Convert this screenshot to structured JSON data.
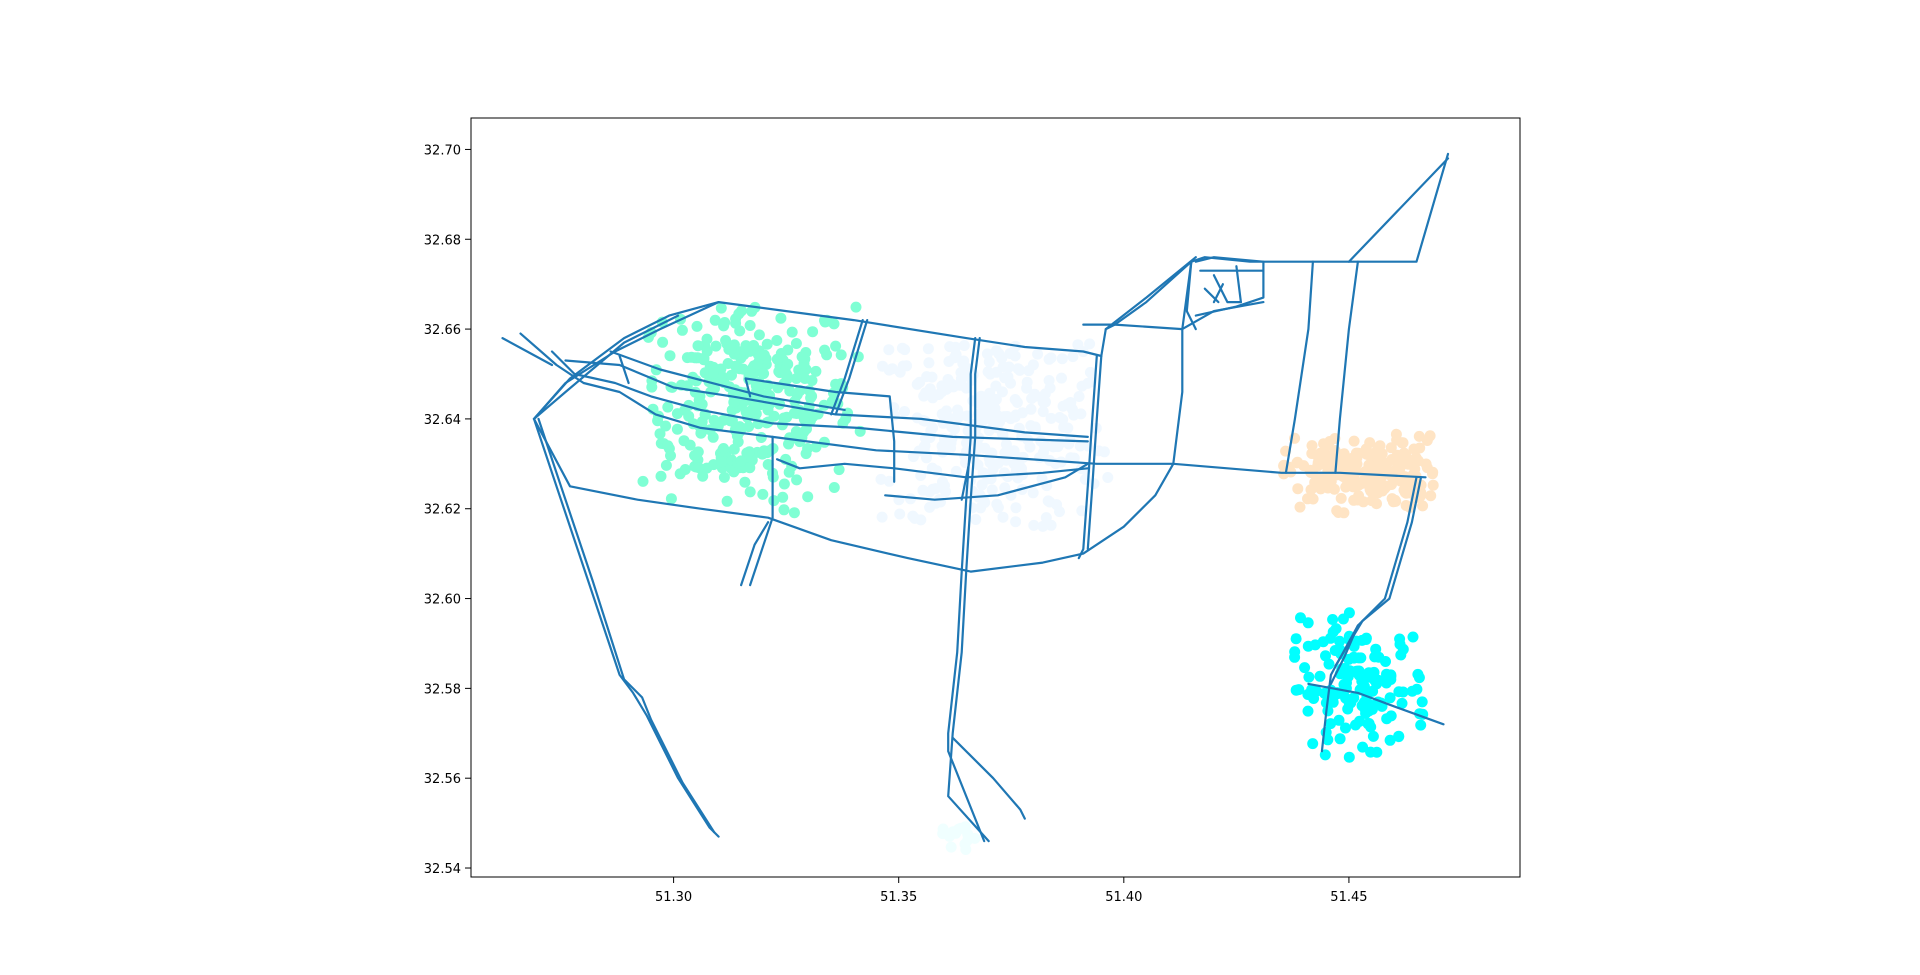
{
  "chart_data": {
    "type": "scatter",
    "title": "",
    "xlabel": "",
    "ylabel": "",
    "xlim": [
      51.255,
      51.488
    ],
    "ylim": [
      32.538,
      32.707
    ],
    "x_ticks": [
      "51.30",
      "51.35",
      "51.40",
      "51.45"
    ],
    "y_ticks": [
      "32.54",
      "32.56",
      "32.58",
      "32.60",
      "32.62",
      "32.64",
      "32.66",
      "32.68",
      "32.70"
    ],
    "grid": false,
    "legend": "none",
    "road_color": "#1f77b4",
    "clusters": [
      {
        "color": "#7fffd4",
        "center": [
          51.316,
          32.644
        ],
        "spread": [
          0.012,
          0.012
        ],
        "count": 330,
        "bounds": [
          51.293,
          51.342,
          32.619,
          32.667
        ]
      },
      {
        "color": "#f0f8ff",
        "center": [
          51.37,
          32.638
        ],
        "spread": [
          0.014,
          0.012
        ],
        "count": 320,
        "bounds": [
          51.344,
          51.397,
          32.616,
          32.657
        ]
      },
      {
        "color": "#ffe4c4",
        "center": [
          51.453,
          32.628
        ],
        "spread": [
          0.009,
          0.004
        ],
        "count": 220,
        "bounds": [
          51.435,
          51.469,
          32.618,
          32.637
        ]
      },
      {
        "color": "#00ffff",
        "center": [
          51.452,
          32.58
        ],
        "spread": [
          0.008,
          0.007
        ],
        "count": 150,
        "bounds": [
          51.437,
          51.467,
          32.564,
          32.597
        ]
      },
      {
        "color": "#f0ffff",
        "center": [
          51.363,
          32.547
        ],
        "spread": [
          0.003,
          0.002
        ],
        "count": 14,
        "bounds": [
          51.357,
          51.369,
          32.544,
          32.551
        ]
      }
    ],
    "roads": [
      [
        [
          51.266,
          32.659
        ],
        [
          51.274,
          32.652
        ],
        [
          51.28,
          32.648
        ],
        [
          51.288,
          32.646
        ],
        [
          51.296,
          32.641
        ],
        [
          51.306,
          32.638
        ],
        [
          51.322,
          32.636
        ],
        [
          51.345,
          32.633
        ],
        [
          51.365,
          32.632
        ],
        [
          51.394,
          32.63
        ],
        [
          51.411,
          32.63
        ],
        [
          51.435,
          32.628
        ],
        [
          51.448,
          32.628
        ],
        [
          51.467,
          32.627
        ]
      ],
      [
        [
          51.269,
          32.64
        ],
        [
          51.276,
          32.648
        ],
        [
          51.287,
          32.655
        ],
        [
          51.297,
          32.66
        ],
        [
          51.31,
          32.666
        ],
        [
          51.34,
          32.662
        ],
        [
          51.365,
          32.658
        ],
        [
          51.378,
          32.656
        ],
        [
          51.391,
          32.655
        ],
        [
          51.395,
          32.654
        ]
      ],
      [
        [
          51.269,
          32.64
        ],
        [
          51.277,
          32.649
        ],
        [
          51.289,
          32.658
        ],
        [
          51.299,
          32.663
        ],
        [
          51.31,
          32.666
        ]
      ],
      [
        [
          51.269,
          32.64
        ],
        [
          51.276,
          32.646
        ],
        [
          51.289,
          32.657
        ],
        [
          51.301,
          32.663
        ]
      ],
      [
        [
          51.269,
          32.64
        ],
        [
          51.277,
          32.625
        ],
        [
          51.292,
          32.622
        ],
        [
          51.306,
          32.62
        ],
        [
          51.321,
          32.618
        ],
        [
          51.335,
          32.613
        ],
        [
          51.352,
          32.609
        ],
        [
          51.366,
          32.606
        ],
        [
          51.382,
          32.608
        ],
        [
          51.391,
          32.61
        ],
        [
          51.4,
          32.616
        ],
        [
          51.407,
          32.623
        ],
        [
          51.411,
          32.63
        ],
        [
          51.413,
          32.646
        ],
        [
          51.413,
          32.66
        ],
        [
          51.415,
          32.675
        ]
      ],
      [
        [
          51.269,
          32.64
        ],
        [
          51.274,
          32.625
        ],
        [
          51.281,
          32.604
        ],
        [
          51.288,
          32.583
        ],
        [
          51.291,
          32.579
        ],
        [
          51.294,
          32.574
        ],
        [
          51.301,
          32.56
        ],
        [
          51.308,
          32.549
        ],
        [
          51.31,
          32.547
        ]
      ],
      [
        [
          51.27,
          32.64
        ],
        [
          51.275,
          32.625
        ],
        [
          51.282,
          32.604
        ],
        [
          51.289,
          32.582
        ],
        [
          51.293,
          32.578
        ],
        [
          51.295,
          32.573
        ],
        [
          51.302,
          32.559
        ],
        [
          51.309,
          32.548
        ]
      ],
      [
        [
          51.273,
          32.655
        ],
        [
          51.278,
          32.65
        ],
        [
          51.287,
          32.648
        ],
        [
          51.295,
          32.645
        ],
        [
          51.306,
          32.642
        ],
        [
          51.322,
          32.639
        ],
        [
          51.341,
          32.638
        ],
        [
          51.362,
          32.636
        ],
        [
          51.392,
          32.635
        ]
      ],
      [
        [
          51.276,
          32.653
        ],
        [
          51.288,
          32.652
        ],
        [
          51.3,
          32.647
        ],
        [
          51.313,
          32.645
        ],
        [
          51.336,
          32.641
        ],
        [
          51.355,
          32.64
        ],
        [
          51.378,
          32.637
        ],
        [
          51.392,
          32.636
        ]
      ],
      [
        [
          51.286,
          32.655
        ],
        [
          51.297,
          32.651
        ],
        [
          51.32,
          32.645
        ],
        [
          51.338,
          32.642
        ]
      ],
      [
        [
          51.288,
          32.654
        ],
        [
          51.29,
          32.648
        ]
      ],
      [
        [
          51.262,
          32.658
        ],
        [
          51.273,
          32.652
        ]
      ],
      [
        [
          51.322,
          32.636
        ],
        [
          51.322,
          32.618
        ],
        [
          51.317,
          32.603
        ]
      ],
      [
        [
          51.321,
          32.617
        ],
        [
          51.318,
          32.612
        ],
        [
          51.315,
          32.603
        ]
      ],
      [
        [
          51.316,
          32.649
        ],
        [
          51.336,
          32.646
        ],
        [
          51.348,
          32.645
        ],
        [
          51.349,
          32.635
        ],
        [
          51.349,
          32.626
        ]
      ],
      [
        [
          51.316,
          32.649
        ],
        [
          51.317,
          32.645
        ]
      ],
      [
        [
          51.342,
          32.662
        ],
        [
          51.338,
          32.649
        ],
        [
          51.335,
          32.641
        ]
      ],
      [
        [
          51.343,
          32.662
        ],
        [
          51.339,
          32.649
        ],
        [
          51.336,
          32.641
        ]
      ],
      [
        [
          51.323,
          32.631
        ],
        [
          51.328,
          32.629
        ],
        [
          51.338,
          32.63
        ],
        [
          51.349,
          32.629
        ],
        [
          51.365,
          32.627
        ],
        [
          51.382,
          32.628
        ],
        [
          51.392,
          32.629
        ]
      ],
      [
        [
          51.347,
          32.623
        ],
        [
          51.358,
          32.622
        ],
        [
          51.372,
          32.623
        ],
        [
          51.387,
          32.627
        ],
        [
          51.392,
          32.63
        ]
      ],
      [
        [
          51.367,
          32.658
        ],
        [
          51.366,
          32.65
        ],
        [
          51.366,
          32.636
        ],
        [
          51.365,
          32.622
        ],
        [
          51.364,
          32.606
        ],
        [
          51.363,
          32.588
        ],
        [
          51.361,
          32.57
        ],
        [
          51.361,
          32.566
        ],
        [
          51.369,
          32.546
        ]
      ],
      [
        [
          51.368,
          32.658
        ],
        [
          51.367,
          32.65
        ],
        [
          51.367,
          32.636
        ],
        [
          51.366,
          32.622
        ],
        [
          51.365,
          32.606
        ],
        [
          51.364,
          32.588
        ],
        [
          51.362,
          32.57
        ],
        [
          51.361,
          32.556
        ],
        [
          51.37,
          32.546
        ]
      ],
      [
        [
          51.362,
          32.569
        ],
        [
          51.371,
          32.56
        ],
        [
          51.377,
          32.553
        ],
        [
          51.378,
          32.551
        ]
      ],
      [
        [
          51.366,
          32.632
        ],
        [
          51.364,
          32.622
        ]
      ],
      [
        [
          51.394,
          32.654
        ],
        [
          51.393,
          32.64
        ],
        [
          51.392,
          32.625
        ],
        [
          51.391,
          32.611
        ],
        [
          51.39,
          32.609
        ]
      ],
      [
        [
          51.395,
          32.654
        ],
        [
          51.394,
          32.64
        ],
        [
          51.393,
          32.625
        ],
        [
          51.392,
          32.611
        ]
      ],
      [
        [
          51.391,
          32.661
        ],
        [
          51.398,
          32.661
        ],
        [
          51.413,
          32.66
        ],
        [
          51.42,
          32.664
        ],
        [
          51.431,
          32.666
        ]
      ],
      [
        [
          51.395,
          32.654
        ],
        [
          51.396,
          32.66
        ],
        [
          51.398,
          32.661
        ],
        [
          51.405,
          32.666
        ],
        [
          51.415,
          32.675
        ],
        [
          51.418,
          32.676
        ],
        [
          51.428,
          32.675
        ],
        [
          51.442,
          32.675
        ],
        [
          51.45,
          32.675
        ],
        [
          51.465,
          32.675
        ],
        [
          51.472,
          32.699
        ]
      ],
      [
        [
          51.396,
          32.66
        ],
        [
          51.405,
          32.667
        ],
        [
          51.416,
          32.676
        ]
      ],
      [
        [
          51.415,
          32.675
        ],
        [
          51.414,
          32.664
        ],
        [
          51.416,
          32.66
        ]
      ],
      [
        [
          51.416,
          32.675
        ],
        [
          51.42,
          32.676
        ],
        [
          51.431,
          32.675
        ],
        [
          51.431,
          32.667
        ],
        [
          51.425,
          32.665
        ],
        [
          51.416,
          32.663
        ]
      ],
      [
        [
          51.417,
          32.673
        ],
        [
          51.431,
          32.673
        ]
      ],
      [
        [
          51.42,
          32.672
        ],
        [
          51.423,
          32.666
        ],
        [
          51.426,
          32.666
        ]
      ],
      [
        [
          51.422,
          32.67
        ],
        [
          51.42,
          32.666
        ]
      ],
      [
        [
          51.425,
          32.674
        ],
        [
          51.426,
          32.666
        ]
      ],
      [
        [
          51.418,
          32.669
        ],
        [
          51.421,
          32.666
        ]
      ],
      [
        [
          51.442,
          32.675
        ],
        [
          51.441,
          32.66
        ],
        [
          51.438,
          32.64
        ],
        [
          51.436,
          32.628
        ]
      ],
      [
        [
          51.452,
          32.675
        ],
        [
          51.45,
          32.66
        ],
        [
          51.448,
          32.64
        ],
        [
          51.447,
          32.628
        ]
      ],
      [
        [
          51.45,
          32.675
        ],
        [
          51.472,
          32.698
        ]
      ],
      [
        [
          51.465,
          32.627
        ],
        [
          51.463,
          32.617
        ],
        [
          51.458,
          32.6
        ],
        [
          51.452,
          32.594
        ],
        [
          51.446,
          32.583
        ],
        [
          51.445,
          32.575
        ],
        [
          51.444,
          32.566
        ]
      ],
      [
        [
          51.466,
          32.627
        ],
        [
          51.464,
          32.617
        ],
        [
          51.459,
          32.6
        ],
        [
          51.453,
          32.595
        ],
        [
          51.447,
          32.585
        ]
      ],
      [
        [
          51.441,
          32.581
        ],
        [
          51.452,
          32.579
        ],
        [
          51.46,
          32.576
        ],
        [
          51.471,
          32.572
        ]
      ],
      [
        [
          51.452,
          32.594
        ],
        [
          51.449,
          32.587
        ],
        [
          51.446,
          32.581
        ]
      ]
    ]
  }
}
